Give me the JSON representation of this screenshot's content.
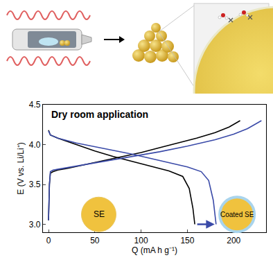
{
  "chart_data": {
    "type": "line",
    "title": "Dry room application",
    "xlabel": "Q (mA h g⁻¹)",
    "ylabel": "E (V vs. Li/Li⁺)",
    "xlim": [
      -6,
      235
    ],
    "ylim": [
      2.9,
      4.5
    ],
    "xticks": [
      0,
      50,
      100,
      150,
      200
    ],
    "yticks": [
      {
        "value": 3,
        "label": "3.0"
      },
      3.5,
      {
        "value": 4,
        "label": "4.0"
      },
      4.5
    ],
    "series": [
      {
        "name": "SE",
        "color": "#000000",
        "x": [
          0,
          1,
          2,
          5,
          10,
          20,
          40,
          60,
          80,
          100,
          120,
          140,
          160,
          180,
          195,
          207,
          null,
          0,
          2,
          10,
          30,
          50,
          70,
          90,
          110,
          130,
          145,
          152,
          156,
          158
        ],
        "values": [
          3.05,
          3.5,
          3.64,
          3.66,
          3.68,
          3.7,
          3.75,
          3.8,
          3.85,
          3.9,
          3.96,
          4.02,
          4.08,
          4.15,
          4.22,
          4.3,
          null,
          4.18,
          4.12,
          4.08,
          4.0,
          3.92,
          3.85,
          3.79,
          3.73,
          3.67,
          3.6,
          3.45,
          3.2,
          3.0
        ]
      },
      {
        "name": "Coated SE",
        "color": "#3a4aa8",
        "x": [
          0,
          1,
          2,
          5,
          10,
          30,
          60,
          90,
          120,
          150,
          180,
          200,
          215,
          230,
          null,
          0,
          2,
          10,
          30,
          60,
          90,
          120,
          150,
          165,
          173,
          178,
          181
        ],
        "values": [
          3.05,
          3.5,
          3.66,
          3.68,
          3.69,
          3.73,
          3.79,
          3.85,
          3.91,
          3.98,
          4.06,
          4.13,
          4.2,
          4.3,
          null,
          4.17,
          4.12,
          4.08,
          4.02,
          3.95,
          3.88,
          3.8,
          3.72,
          3.66,
          3.55,
          3.3,
          3.0
        ]
      }
    ]
  }
}
